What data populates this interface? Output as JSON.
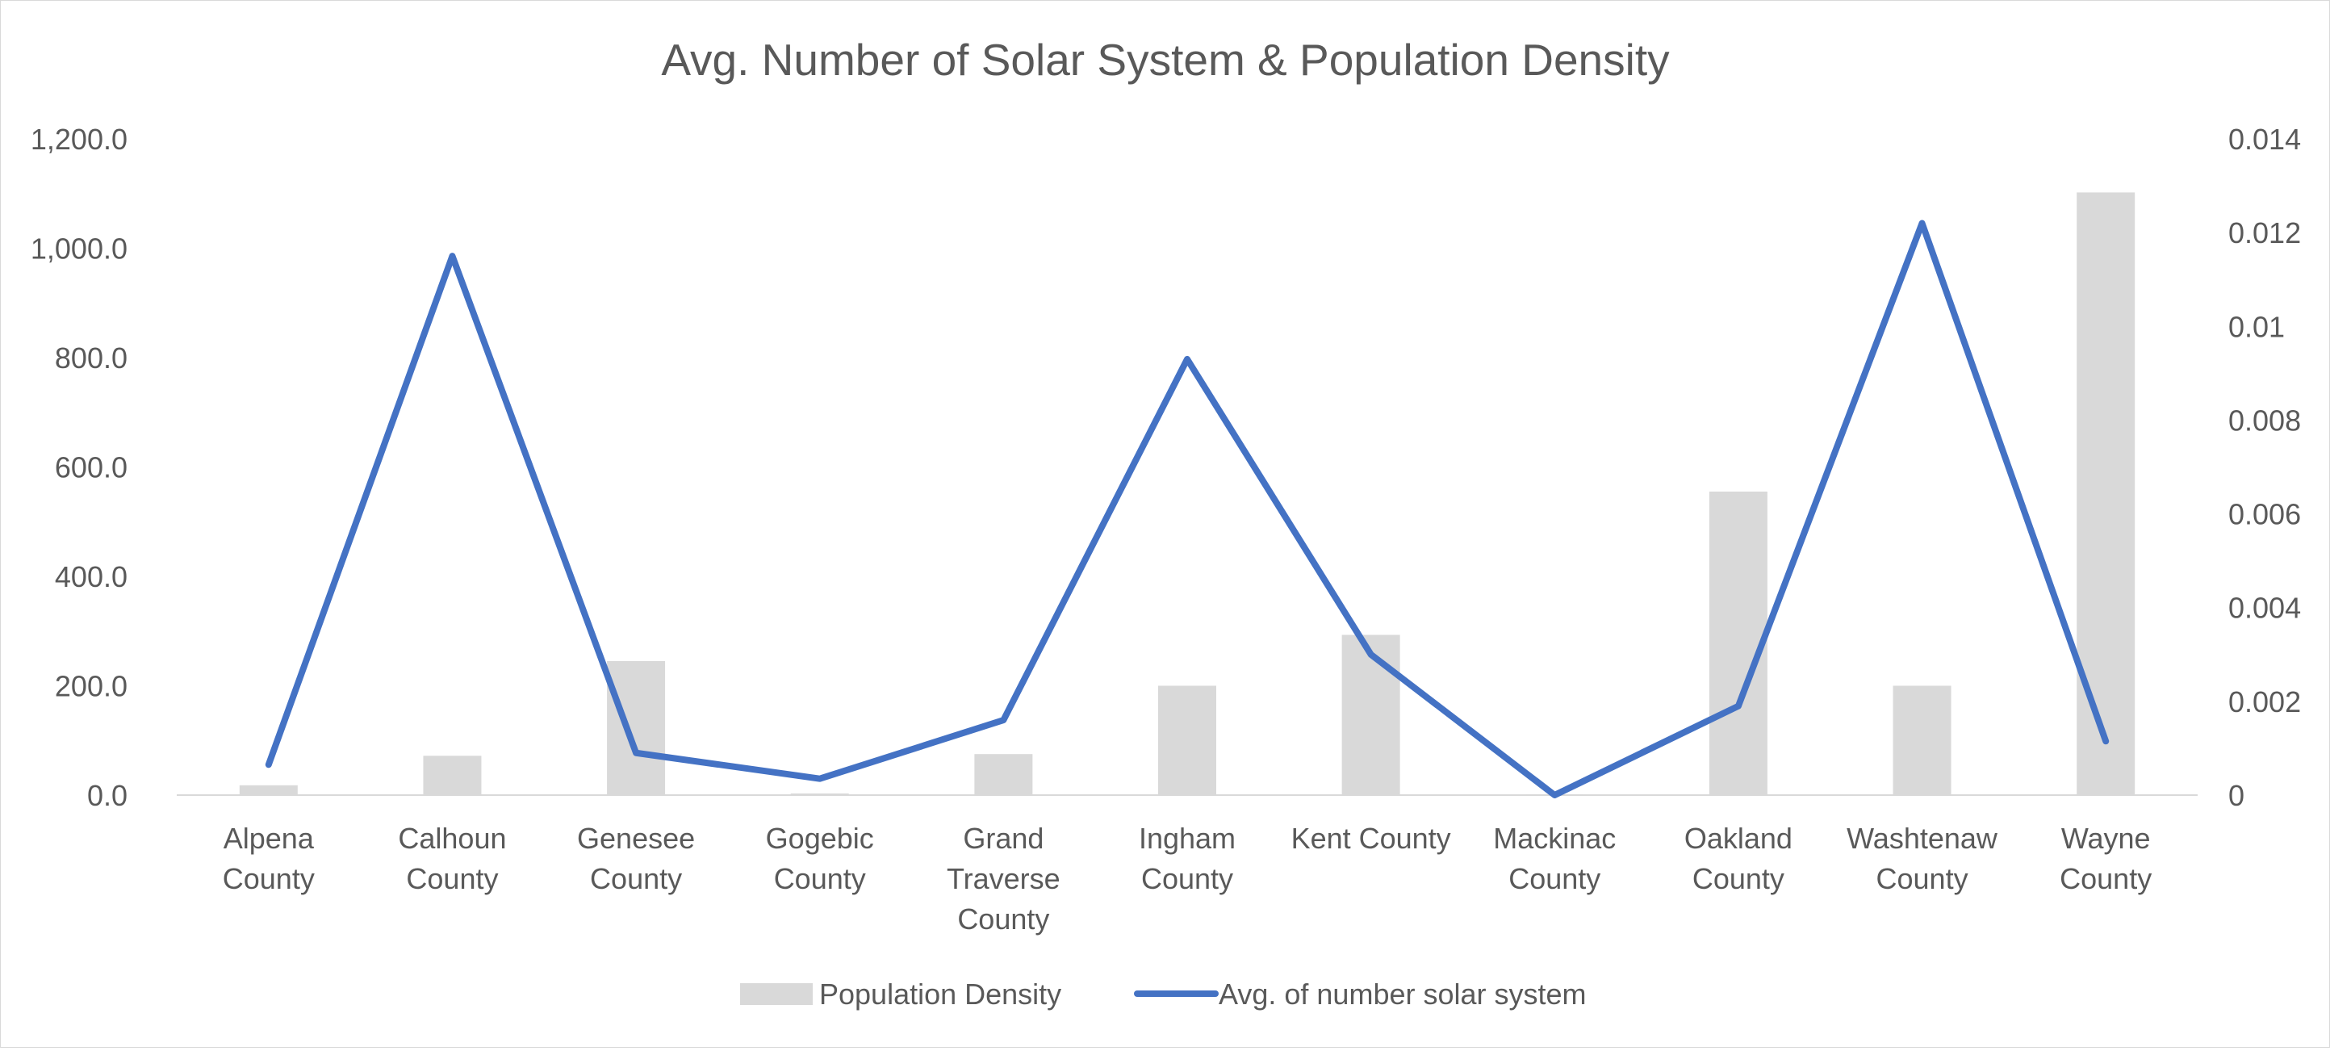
{
  "chart_data": {
    "type": "bar",
    "title": "Avg. Number of Solar System & Population Density",
    "categories": [
      [
        "Alpena",
        "County"
      ],
      [
        "Calhoun",
        "County"
      ],
      [
        "Genesee",
        "County"
      ],
      [
        "Gogebic",
        "County"
      ],
      [
        "Grand",
        "Traverse",
        "County"
      ],
      [
        "Ingham",
        "County"
      ],
      [
        "Kent County"
      ],
      [
        "Mackinac",
        "County"
      ],
      [
        "Oakland",
        "County"
      ],
      [
        "Washtenaw",
        "County"
      ],
      [
        "Wayne",
        "County"
      ]
    ],
    "series": [
      {
        "name": "Population Density",
        "type": "bar",
        "axis": "left",
        "color": "#d9d9d9",
        "values": [
          18,
          72,
          245,
          3,
          75,
          200,
          293,
          1,
          555,
          200,
          1102
        ]
      },
      {
        "name": "Avg. of number solar system",
        "type": "line",
        "axis": "right",
        "color": "#4472c4",
        "values": [
          0.00065,
          0.0115,
          0.0009,
          0.00035,
          0.0016,
          0.0093,
          0.003,
          0.0,
          0.0019,
          0.0122,
          0.00115
        ]
      }
    ],
    "y_left": {
      "range": [
        0,
        1200
      ],
      "ticks": [
        "0.0",
        "200.0",
        "400.0",
        "600.0",
        "800.0",
        "1,000.0",
        "1,200.0"
      ]
    },
    "y_right": {
      "range": [
        0,
        0.014
      ],
      "ticks": [
        "0",
        "0.002",
        "0.004",
        "0.006",
        "0.008",
        "0.01",
        "0.012",
        "0.014"
      ]
    },
    "grid": false,
    "legend_position": "bottom"
  }
}
